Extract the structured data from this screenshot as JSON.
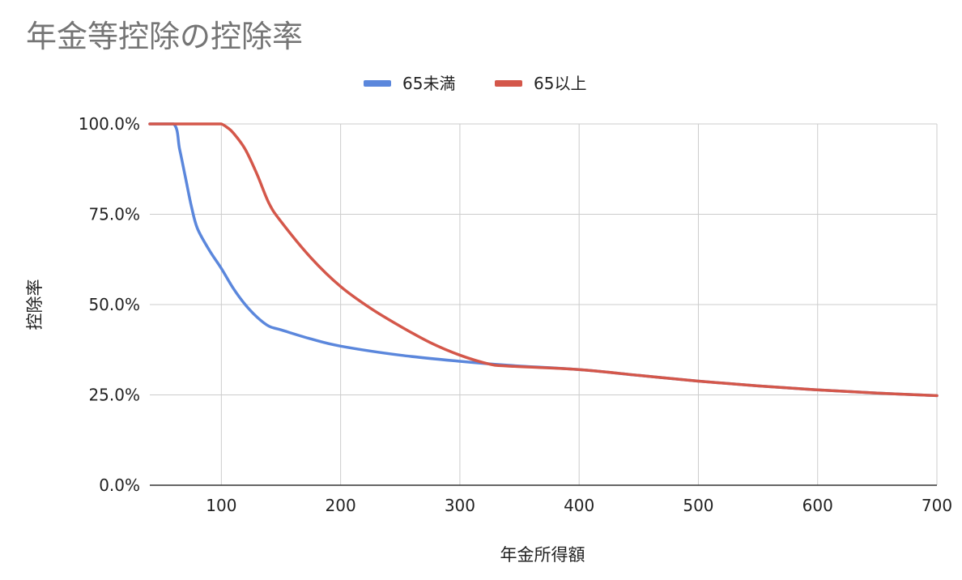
{
  "chart_data": {
    "type": "line",
    "title": "年金等控除の控除率",
    "xlabel": "年金所得額",
    "ylabel": "控除率",
    "xlim": [
      40,
      700
    ],
    "ylim": [
      0,
      1
    ],
    "x_ticks": [
      100,
      200,
      300,
      400,
      500,
      600,
      700
    ],
    "y_ticks": [
      0,
      0.25,
      0.5,
      0.75,
      1.0
    ],
    "y_tick_labels": [
      "0.0%",
      "25.0%",
      "50.0%",
      "75.0%",
      "100.0%"
    ],
    "grid": true,
    "legend_position": "top-center",
    "series": [
      {
        "name": "65未満",
        "color": "#5b87dc",
        "x": [
          40,
          60,
          65,
          70,
          75,
          80,
          90,
          100,
          110,
          120,
          130,
          140,
          150,
          175,
          200,
          250,
          300,
          340,
          400,
          450,
          500,
          550,
          600,
          650,
          700
        ],
        "y": [
          1.0,
          1.0,
          0.93,
          0.85,
          0.77,
          0.71,
          0.65,
          0.6,
          0.545,
          0.5,
          0.465,
          0.44,
          0.43,
          0.405,
          0.385,
          0.36,
          0.343,
          0.332,
          0.32,
          0.304,
          0.288,
          0.275,
          0.264,
          0.255,
          0.248
        ]
      },
      {
        "name": "65以上",
        "color": "#d4574a",
        "x": [
          40,
          80,
          95,
          100,
          105,
          110,
          120,
          130,
          140,
          150,
          175,
          200,
          225,
          250,
          275,
          300,
          325,
          340,
          400,
          450,
          500,
          550,
          600,
          650,
          700
        ],
        "y": [
          1.0,
          1.0,
          1.0,
          1.0,
          0.99,
          0.975,
          0.93,
          0.86,
          0.78,
          0.73,
          0.63,
          0.55,
          0.49,
          0.44,
          0.395,
          0.36,
          0.335,
          0.33,
          0.32,
          0.304,
          0.288,
          0.275,
          0.264,
          0.255,
          0.248
        ]
      }
    ]
  }
}
